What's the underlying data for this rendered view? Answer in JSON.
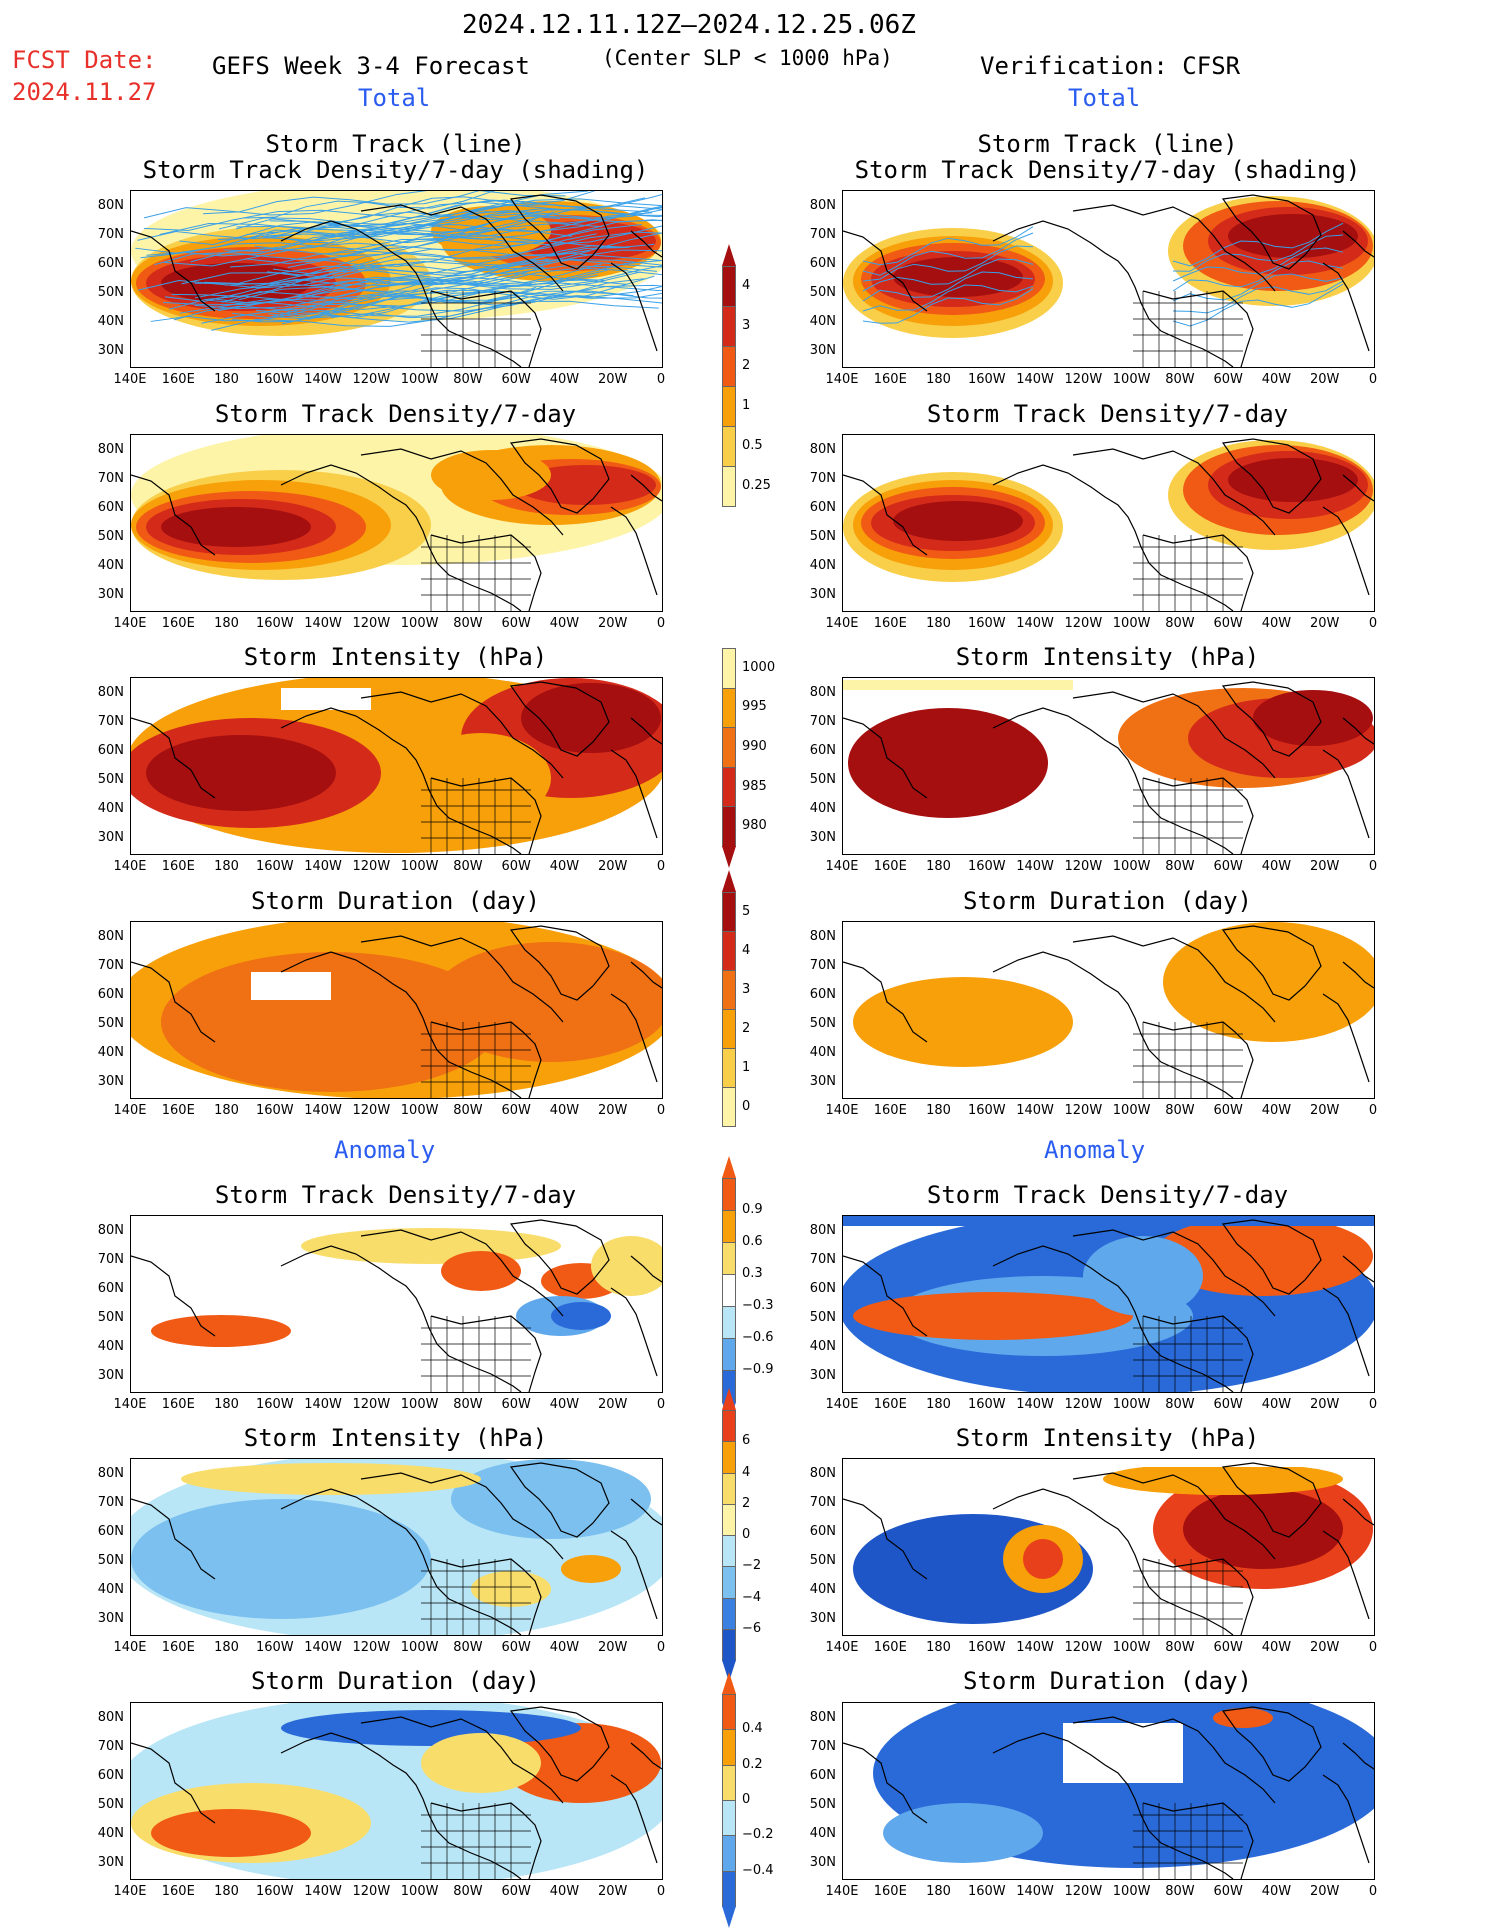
{
  "header": {
    "date_range": "2024.12.11.12Z–2024.12.25.06Z",
    "fcst_label": "FCST Date:",
    "fcst_date": "2024.11.27",
    "left_title": "GEFS Week 3-4 Forecast",
    "criteria": "(Center SLP < 1000 hPa)",
    "right_title": "Verification: CFSR",
    "total_label": "Total",
    "anomaly_label": "Anomaly"
  },
  "panel_titles": {
    "track_line": "Storm Track (line)",
    "track_shading": "Storm Track Density/7-day (shading)",
    "density": "Storm Track Density/7-day",
    "intensity": "Storm Intensity (hPa)",
    "duration": "Storm Duration (day)"
  },
  "axes": {
    "lat_labels": [
      "80N",
      "70N",
      "60N",
      "50N",
      "40N",
      "30N"
    ],
    "lon_labels": [
      "140E",
      "160E",
      "180",
      "160W",
      "140W",
      "120W",
      "100W",
      "80W",
      "60W",
      "40W",
      "20W",
      "0"
    ]
  },
  "colorbars": {
    "density_total": {
      "labels": [
        "4",
        "3",
        "2",
        "1",
        "0.5",
        "0.25"
      ],
      "colors": [
        "#a50f0f",
        "#d42a1a",
        "#f05a14",
        "#f7a00a",
        "#f9cf4a",
        "#fdf4a8"
      ]
    },
    "intensity_total": {
      "labels": [
        "1000",
        "995",
        "990",
        "985",
        "980"
      ],
      "colors": [
        "#fdf4a8",
        "#f7a00a",
        "#f07014",
        "#d42a1a",
        "#a50f0f"
      ]
    },
    "duration_total": {
      "labels": [
        "5",
        "4",
        "3",
        "2",
        "1",
        "0"
      ],
      "colors": [
        "#a50f0f",
        "#d42a1a",
        "#f07014",
        "#f7a00a",
        "#f9cf4a",
        "#fdf4a8"
      ]
    },
    "density_anom": {
      "labels": [
        "0.9",
        "0.6",
        "0.3",
        "−0.3",
        "−0.6",
        "−0.9"
      ],
      "colors": [
        "#f05a14",
        "#f7a00a",
        "#f9dd6a",
        "#ffffff",
        "#b8e6f6",
        "#5fa8ec",
        "#2a6ad8"
      ]
    },
    "intensity_anom": {
      "labels": [
        "6",
        "4",
        "2",
        "0",
        "−2",
        "−4",
        "−6"
      ],
      "colors": [
        "#e8401a",
        "#f7a00a",
        "#f9dd6a",
        "#fdf4a8",
        "#b8e6f6",
        "#7cc0f0",
        "#3a80e0",
        "#1e56c8"
      ]
    },
    "duration_anom": {
      "labels": [
        "0.4",
        "0.2",
        "0",
        "−0.2",
        "−0.4"
      ],
      "colors": [
        "#f05a14",
        "#f7a00a",
        "#f9dd6a",
        "#b8e6f6",
        "#5fa8ec",
        "#2a6ad8"
      ]
    }
  }
}
